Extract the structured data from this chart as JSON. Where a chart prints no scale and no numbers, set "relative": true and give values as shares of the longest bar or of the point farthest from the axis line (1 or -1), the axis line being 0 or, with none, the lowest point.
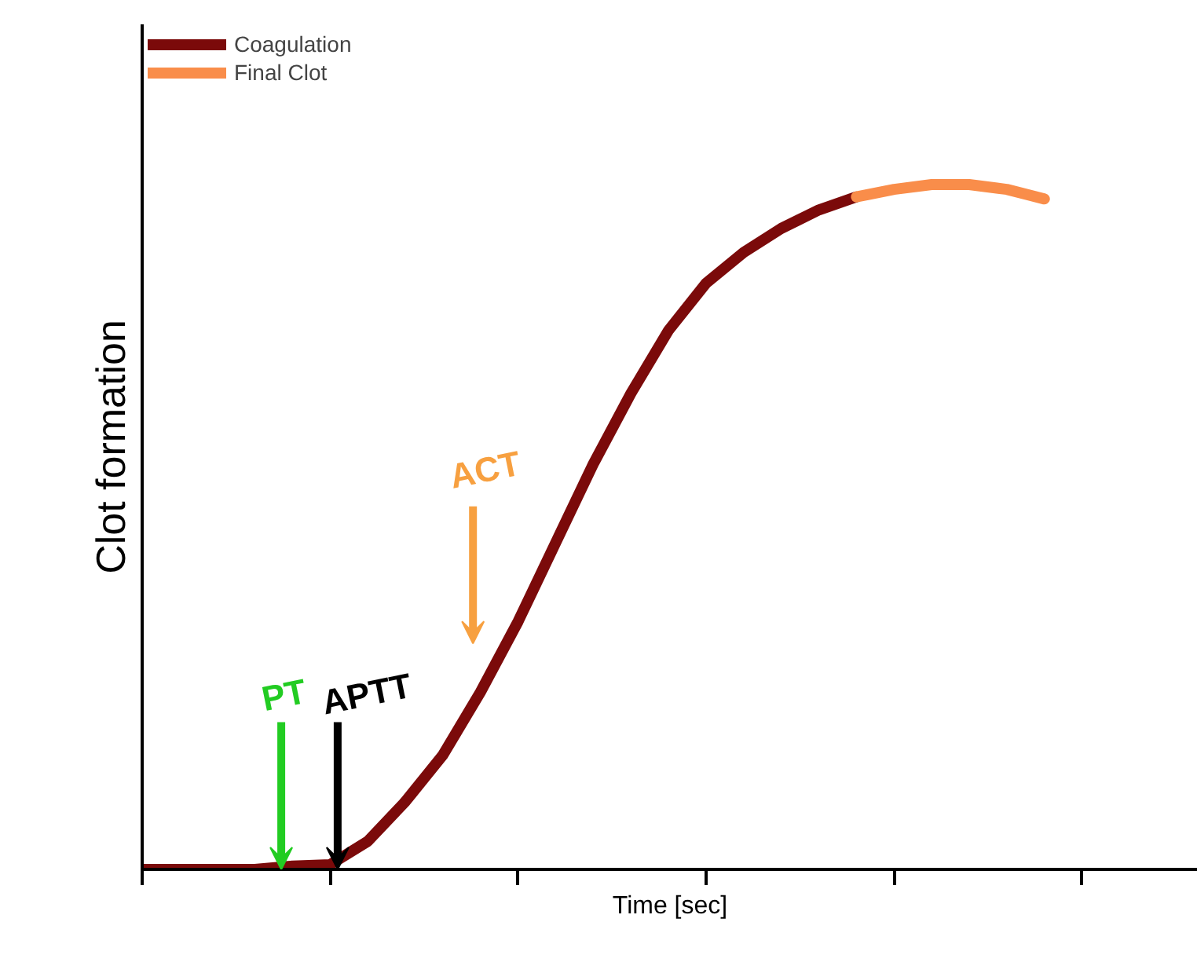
{
  "chart_data": {
    "type": "line",
    "relative": true,
    "xlabel": "Time [sec]",
    "ylabel": "Clot formation",
    "categories": [
      null,
      null,
      null,
      null,
      null,
      null,
      null,
      null,
      null,
      null,
      null,
      null,
      null,
      null,
      null,
      null,
      null,
      null,
      null,
      null,
      null,
      null,
      null,
      null,
      null
    ],
    "series": [
      {
        "name": "Coagulation",
        "color": "#7b0a0a",
        "values": [
          0,
          0,
          0,
          0,
          0.005,
          0.007,
          0.041,
          0.099,
          0.167,
          0.259,
          0.362,
          0.477,
          0.592,
          0.695,
          0.787,
          0.856,
          0.901,
          0.936,
          0.963,
          0.982,
          null,
          null,
          null,
          null,
          null
        ]
      },
      {
        "name": "Final Clot",
        "color": "#f98d4a",
        "values": [
          null,
          null,
          null,
          null,
          null,
          null,
          null,
          null,
          null,
          null,
          null,
          null,
          null,
          null,
          null,
          null,
          null,
          null,
          null,
          0.982,
          0.993,
          1.0,
          1.0,
          0.993,
          0.979
        ]
      }
    ],
    "annotations": [
      "PT",
      "APTT",
      "ACT"
    ],
    "legend": "top left",
    "grid": false,
    "marker": "none",
    "line_style": "solid"
  }
}
